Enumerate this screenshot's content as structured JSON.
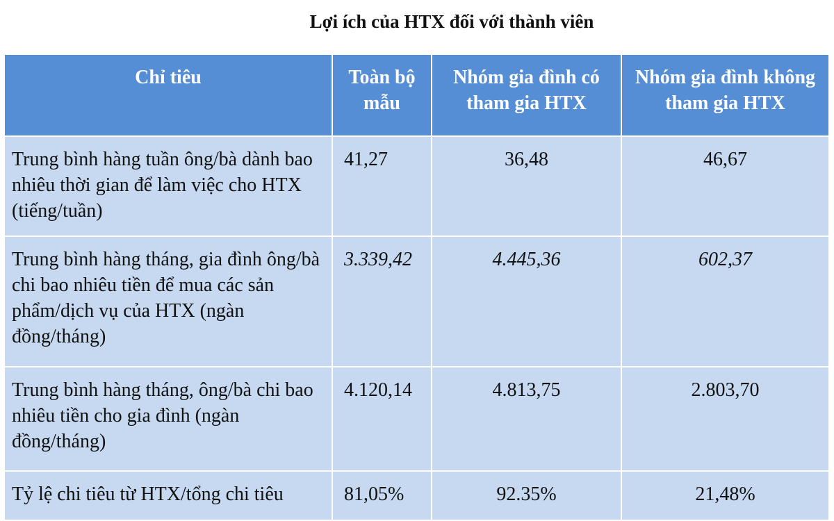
{
  "title": "Lợi ích của HTX đối với thành viên",
  "table": {
    "header": [
      "Chỉ tiêu",
      "Toàn bộ mẫu",
      "Nhóm gia đình có tham gia HTX",
      "Nhóm gia đình không tham gia HTX"
    ],
    "rows": [
      [
        "Trung bình hàng tuần ông/bà dành bao nhiêu thời gian để làm việc cho HTX (tiếng/tuần)",
        "41,27",
        "36,48",
        "46,67"
      ],
      [
        "Trung bình hàng tháng, gia đình ông/bà chi bao nhiêu tiền để mua các sản phẩm/dịch vụ của HTX (ngàn đồng/tháng)",
        "3.339,42",
        "4.445,36",
        "602,37"
      ],
      [
        "Trung bình hàng tháng, ông/bà chi bao nhiêu tiền cho gia đình (ngàn đồng/tháng)",
        "4.120,14",
        "4.813,75",
        "2.803,70"
      ],
      [
        "Tỷ lệ chi tiêu từ HTX/tổng chi tiêu",
        "81,05%",
        "92.35%",
        "21,48%"
      ]
    ]
  }
}
